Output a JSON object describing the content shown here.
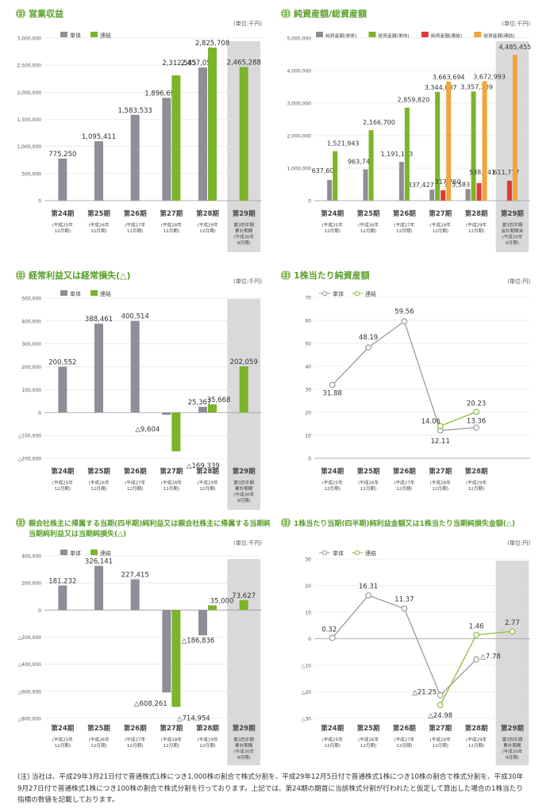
{
  "colors": {
    "tan": "#8e8e98",
    "ren": "#7cb42a",
    "red": "#e03a3a",
    "orange": "#f2a53a",
    "shade": "#d9d9dc",
    "title_green": "#5a9e2a",
    "line_tan": "#9a9a9a",
    "line_ren": "#8dbb3c"
  },
  "note": "(注) 当社は、平成29年3月21日付で普通株式1株につき1,000株の割合で株式分割を、平成29年12月5日付で普通株式1株につき10株の割合で株式分割を、平成30年9月27日付で普通株式1株につき100株の割合で株式分割を行っております。上記では、第24期の期首に当該株式分割が行われたと仮定して算出した場合の1株当たり指標の数値を記載しております。",
  "chart_data": [
    {
      "type": "bar",
      "title": "営業収益",
      "unit": "(単位:千円)",
      "legend": [
        "単体",
        "連結"
      ],
      "categories": [
        [
          "第24期",
          "(平成25年",
          "12月期)"
        ],
        [
          "第25期",
          "(平成26年",
          "12月期)"
        ],
        [
          "第26期",
          "(平成27年",
          "12月期)"
        ],
        [
          "第27期",
          "(平成28年",
          "12月期)"
        ],
        [
          "第28期",
          "(平成29年",
          "12月期)"
        ],
        [
          "第29期",
          "第3四半期",
          "累計期間",
          "(平成30年",
          "9月期)"
        ]
      ],
      "ylim": [
        0,
        3000000
      ],
      "yticks": [
        {
          "v": 0,
          "t": "0"
        },
        {
          "v": 500000,
          "t": "500,000"
        },
        {
          "v": 1000000,
          "t": "1,000,000"
        },
        {
          "v": 1500000,
          "t": "1,500,000"
        },
        {
          "v": 2000000,
          "t": "2,000,000"
        },
        {
          "v": 2500000,
          "t": "2,500,000"
        },
        {
          "v": 3000000,
          "t": "3,000,000"
        }
      ],
      "series": [
        {
          "name": "単体",
          "color": "#8e8e98",
          "values": [
            775250,
            1095411,
            1583533,
            1896699,
            2457054,
            null
          ],
          "labels": [
            "775,250",
            "1,095,411",
            "1,583,533",
            "1,896,699",
            "2,457,054",
            ""
          ]
        },
        {
          "name": "連結",
          "color": "#7cb42a",
          "values": [
            null,
            null,
            null,
            2312585,
            2825708,
            2465288
          ],
          "labels": [
            "",
            "",
            "",
            "2,312,585",
            "2,825,708",
            "2,465,288"
          ]
        }
      ]
    },
    {
      "type": "bar",
      "title": "純資産額/総資産額",
      "unit": "(単位:千円)",
      "legend": [
        "純資産額(単体)",
        "総資産額(単体)",
        "純資産額(連結)",
        "総資産額(連結)"
      ],
      "categories": [
        [
          "第24期",
          "(平成25年",
          "12月期)"
        ],
        [
          "第25期",
          "(平成26年",
          "12月期)"
        ],
        [
          "第26期",
          "(平成27年",
          "12月期)"
        ],
        [
          "第27期",
          "(平成28年",
          "12月期)"
        ],
        [
          "第28期",
          "(平成29年",
          "12月期)"
        ],
        [
          "第29期",
          "第3四半期",
          "会計期間末",
          "(平成30年",
          "9月期)"
        ]
      ],
      "ylim": [
        0,
        5000000
      ],
      "yticks": [
        {
          "v": 0,
          "t": "0"
        },
        {
          "v": 1000000,
          "t": "1,000,000"
        },
        {
          "v": 2000000,
          "t": "2,000,000"
        },
        {
          "v": 3000000,
          "t": "3,000,000"
        },
        {
          "v": 4000000,
          "t": "4,000,000"
        },
        {
          "v": 5000000,
          "t": "5,000,000"
        }
      ],
      "series": [
        {
          "name": "純資産額(単体)",
          "color": "#8e8e98",
          "values": [
            637606,
            963748,
            1191163,
            337427,
            355583,
            null
          ],
          "labels": [
            "637,606",
            "963,748",
            "1,191,163",
            "337,427",
            "355,583",
            ""
          ]
        },
        {
          "name": "総資産額(単体)",
          "color": "#7cb42a",
          "values": [
            1521943,
            2166700,
            2859820,
            3344087,
            3357309,
            null
          ],
          "labels": [
            "1,521,943",
            "2,166,700",
            "2,859,820",
            "3,344,087",
            "3,357,309",
            ""
          ]
        },
        {
          "name": "純資産額(連結)",
          "color": "#e03a3a",
          "values": [
            null,
            null,
            null,
            317760,
            538441,
            611717
          ],
          "labels": [
            "",
            "",
            "",
            "317,760",
            "538,441",
            "611,717"
          ]
        },
        {
          "name": "総資産額(連結)",
          "color": "#f2a53a",
          "values": [
            null,
            null,
            null,
            3663694,
            3672993,
            4485455
          ],
          "labels": [
            "",
            "",
            "",
            "3,663,694",
            "3,672,993",
            "4,485,455"
          ]
        }
      ]
    },
    {
      "type": "bar",
      "title": "経常利益又は経常損失(△)",
      "unit": "(単位:千円)",
      "legend": [
        "単体",
        "連結"
      ],
      "categories": [
        [
          "第24期",
          "(平成25年",
          "12月期)"
        ],
        [
          "第25期",
          "(平成26年",
          "12月期)"
        ],
        [
          "第26期",
          "(平成27年",
          "12月期)"
        ],
        [
          "第27期",
          "(平成28年",
          "12月期)"
        ],
        [
          "第28期",
          "(平成29年",
          "12月期)"
        ],
        [
          "第29期",
          "第3四半期",
          "累計期間",
          "(平成30年",
          "9月期)"
        ]
      ],
      "ylim": [
        -200000,
        500000
      ],
      "yticks": [
        {
          "v": -200000,
          "t": "△200,000"
        },
        {
          "v": -100000,
          "t": "△100,000"
        },
        {
          "v": 0,
          "t": "0"
        },
        {
          "v": 100000,
          "t": "100,000"
        },
        {
          "v": 200000,
          "t": "200,000"
        },
        {
          "v": 300000,
          "t": "300,000"
        },
        {
          "v": 400000,
          "t": "400,000"
        },
        {
          "v": 500000,
          "t": "500,000"
        }
      ],
      "series": [
        {
          "name": "単体",
          "color": "#8e8e98",
          "values": [
            200552,
            388461,
            400514,
            -9604,
            25367,
            null
          ],
          "labels": [
            "200,552",
            "388,461",
            "400,514",
            "△9,604",
            "25,367",
            ""
          ]
        },
        {
          "name": "連結",
          "color": "#7cb42a",
          "values": [
            null,
            null,
            null,
            -169339,
            35668,
            202059
          ],
          "labels": [
            "",
            "",
            "",
            "△169,339",
            "35,668",
            "202,059"
          ]
        }
      ]
    },
    {
      "type": "line",
      "title": "1株当たり純資産額",
      "unit": "(単位:円)",
      "legend": [
        "単体",
        "連結"
      ],
      "categories": [
        [
          "第24期",
          "(平成25年",
          "12月期)"
        ],
        [
          "第25期",
          "(平成26年",
          "12月期)"
        ],
        [
          "第26期",
          "(平成27年",
          "12月期)"
        ],
        [
          "第27期",
          "(平成28年",
          "12月期)"
        ],
        [
          "第28期",
          "(平成29年",
          "12月期)"
        ]
      ],
      "ylim": [
        0,
        70
      ],
      "yticks": [
        {
          "v": 0,
          "t": "0"
        },
        {
          "v": 10,
          "t": "10"
        },
        {
          "v": 20,
          "t": "20"
        },
        {
          "v": 30,
          "t": "30"
        },
        {
          "v": 40,
          "t": "40"
        },
        {
          "v": 50,
          "t": "50"
        },
        {
          "v": 60,
          "t": "60"
        },
        {
          "v": 70,
          "t": "70"
        }
      ],
      "series": [
        {
          "name": "単体",
          "color": "#9a9a9a",
          "values": [
            31.88,
            48.19,
            59.56,
            12.11,
            13.36
          ],
          "labels": [
            "31.88",
            "48.19",
            "59.56",
            "12.11",
            "13.36"
          ]
        },
        {
          "name": "連結",
          "color": "#8dbb3c",
          "values": [
            null,
            null,
            null,
            14.06,
            20.23
          ],
          "labels": [
            "",
            "",
            "",
            "14.06",
            "20.23"
          ]
        }
      ]
    },
    {
      "type": "bar",
      "title": "親会社株主に帰属する当期(四半期)純利益又は親会社株主に帰属する当期純損失(△)/当期純利益又は当期純損失(△)",
      "title_lines": [
        "親会社株主に帰属する当期(四半期)純利益又は親会社株主に帰属する当期純損失(△)/",
        "当期純利益又は当期純損失(△)"
      ],
      "unit": "(単位:千円)",
      "legend": [
        "単体",
        "連結"
      ],
      "categories": [
        [
          "第24期",
          "(平成25年",
          "12月期)"
        ],
        [
          "第25期",
          "(平成26年",
          "12月期)"
        ],
        [
          "第26期",
          "(平成27年",
          "12月期)"
        ],
        [
          "第27期",
          "(平成28年",
          "12月期)"
        ],
        [
          "第28期",
          "(平成29年",
          "12月期)"
        ],
        [
          "第29期",
          "第3四半期",
          "累計期間",
          "(平成30年",
          "9月期)"
        ]
      ],
      "ylim": [
        -800000,
        400000
      ],
      "yticks": [
        {
          "v": -800000,
          "t": "△800,000"
        },
        {
          "v": -600000,
          "t": "△600,000"
        },
        {
          "v": -400000,
          "t": "△400,000"
        },
        {
          "v": -200000,
          "t": "△200,000"
        },
        {
          "v": 0,
          "t": "0"
        },
        {
          "v": 200000,
          "t": "200,000"
        },
        {
          "v": 400000,
          "t": "400,000"
        }
      ],
      "series": [
        {
          "name": "単体",
          "color": "#8e8e98",
          "values": [
            181232,
            326141,
            227415,
            -608261,
            -186836,
            null
          ],
          "labels": [
            "181,232",
            "326,141",
            "227,415",
            "△608,261",
            "△186,836",
            ""
          ]
        },
        {
          "name": "連結",
          "color": "#7cb42a",
          "values": [
            null,
            null,
            null,
            -714954,
            35000,
            73627
          ],
          "labels": [
            "",
            "",
            "",
            "△714,954",
            "35,000",
            "73,627"
          ]
        }
      ]
    },
    {
      "type": "line",
      "title": "1株当たり当期(四半期)純利益金額又は1株当たり当期純損失金額(△)",
      "unit": "(単位:円)",
      "legend": [
        "単体",
        "連結"
      ],
      "categories": [
        [
          "第24期",
          "(平成25年",
          "12月期)"
        ],
        [
          "第25期",
          "(平成26年",
          "12月期)"
        ],
        [
          "第26期",
          "(平成27年",
          "12月期)"
        ],
        [
          "第27期",
          "(平成28年",
          "12月期)"
        ],
        [
          "第28期",
          "(平成29年",
          "12月期)"
        ],
        [
          "第29期",
          "第3四半期",
          "累計期間",
          "(平成30年",
          "9月期)"
        ]
      ],
      "ylim": [
        -30,
        30
      ],
      "yticks": [
        {
          "v": -30,
          "t": "△30"
        },
        {
          "v": -20,
          "t": "△20"
        },
        {
          "v": -10,
          "t": "△10"
        },
        {
          "v": 0,
          "t": "0"
        },
        {
          "v": 10,
          "t": "10"
        },
        {
          "v": 20,
          "t": "20"
        },
        {
          "v": 30,
          "t": "30"
        }
      ],
      "series": [
        {
          "name": "単体",
          "color": "#9a9a9a",
          "values": [
            0.32,
            16.31,
            11.37,
            -21.25,
            -7.78,
            null
          ],
          "labels": [
            "0.32",
            "16.31",
            "11.37",
            "△21.25",
            "△7.78",
            ""
          ]
        },
        {
          "name": "連結",
          "color": "#8dbb3c",
          "values": [
            null,
            null,
            null,
            -24.98,
            1.46,
            2.77
          ],
          "labels": [
            "",
            "",
            "",
            "△24.98",
            "1.46",
            "2.77"
          ]
        }
      ]
    }
  ]
}
